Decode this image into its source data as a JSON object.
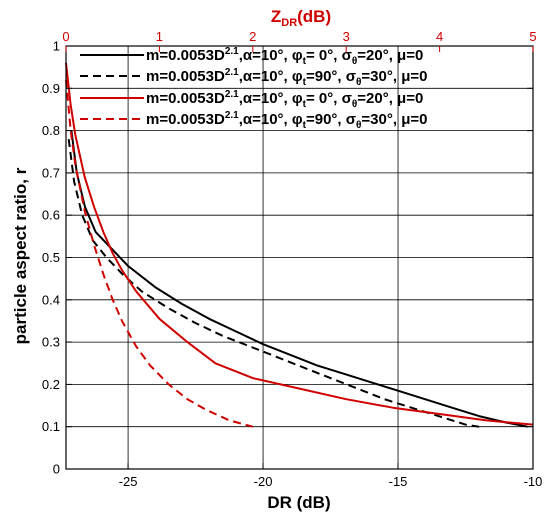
{
  "chart_data": {
    "type": "line",
    "xlabel": "DR (dB)",
    "ylabel": "particle aspect ratio, r",
    "x2label": "Z",
    "x2label_sub": "DR",
    "x2label_suffix": "(dB)",
    "xlim": [
      -27.3,
      -10
    ],
    "ylim": [
      0,
      1
    ],
    "x2lim": [
      0,
      5
    ],
    "xticks": [
      -25,
      -20,
      -15,
      -10
    ],
    "xtick_labels": [
      "-25",
      "-20",
      "-15",
      "-10"
    ],
    "yticks": [
      0,
      0.1,
      0.2,
      0.3,
      0.4,
      0.5,
      0.6,
      0.7,
      0.8,
      0.9,
      1
    ],
    "ytick_labels": [
      "0",
      "0.1",
      "0.2",
      "0.3",
      "0.4",
      "0.5",
      "0.6",
      "0.7",
      "0.8",
      "0.9",
      "1"
    ],
    "x2ticks": [
      0,
      1,
      2,
      3,
      4,
      5
    ],
    "x2tick_labels": [
      "0",
      "1",
      "2",
      "3",
      "4",
      "5"
    ],
    "grid": true,
    "legend_position": "top-right",
    "series": [
      {
        "name": "m=0.0053D^2.1,α=10°, φt= 0°, σθ=20°, μ=0",
        "axis": "bottom",
        "color": "#000000",
        "dash": "solid",
        "x": [
          -27.1,
          -26.9,
          -26.6,
          -26.2,
          -25.6,
          -25.0,
          -24.0,
          -23.0,
          -22.0,
          -21.0,
          -20.0,
          -19.0,
          -18.0,
          -17.0,
          -16.0,
          -15.0,
          -14.0,
          -13.0,
          -12.0,
          -11.0,
          -10.2
        ],
        "y": [
          0.8,
          0.7,
          0.62,
          0.56,
          0.52,
          0.48,
          0.43,
          0.39,
          0.355,
          0.325,
          0.295,
          0.27,
          0.245,
          0.225,
          0.205,
          0.185,
          0.165,
          0.145,
          0.125,
          0.11,
          0.1
        ]
      },
      {
        "name": "m=0.0053D^2.1,α=10°, φt=90°, σθ=30°, μ=0",
        "axis": "bottom",
        "color": "#000000",
        "dash": "dashed",
        "x": [
          -27.2,
          -27.0,
          -26.7,
          -26.3,
          -25.8,
          -25.2,
          -24.5,
          -23.5,
          -22.5,
          -21.5,
          -20.5,
          -19.5,
          -18.5,
          -17.5,
          -16.5,
          -15.5,
          -14.5,
          -13.5,
          -12.5,
          -12.0
        ],
        "y": [
          0.78,
          0.68,
          0.6,
          0.54,
          0.5,
          0.46,
          0.42,
          0.38,
          0.345,
          0.315,
          0.29,
          0.265,
          0.24,
          0.215,
          0.19,
          0.165,
          0.145,
          0.125,
          0.105,
          0.1
        ]
      },
      {
        "name": "m=0.0053D^2.1,α=10°, φt= 0°, σθ=20°, μ=0",
        "axis": "top",
        "color": "#d00000",
        "dash": "solid",
        "x": [
          0.0,
          0.05,
          0.1,
          0.2,
          0.3,
          0.4,
          0.5,
          0.6,
          0.75,
          1.0,
          1.3,
          1.6,
          2.0,
          2.5,
          3.0,
          3.5,
          4.0,
          4.5,
          5.0
        ],
        "y": [
          0.96,
          0.86,
          0.79,
          0.69,
          0.62,
          0.56,
          0.51,
          0.47,
          0.42,
          0.355,
          0.3,
          0.25,
          0.215,
          0.19,
          0.165,
          0.145,
          0.13,
          0.115,
          0.105
        ]
      },
      {
        "name": "m=0.0053D^2.1,α=10°, φt=90°, σθ=30°, μ=0",
        "axis": "top",
        "color": "#d00000",
        "dash": "dashed",
        "x": [
          0.0,
          0.05,
          0.1,
          0.2,
          0.3,
          0.4,
          0.5,
          0.6,
          0.75,
          0.9,
          1.1,
          1.3,
          1.5,
          1.75,
          2.0
        ],
        "y": [
          0.92,
          0.8,
          0.72,
          0.61,
          0.53,
          0.46,
          0.4,
          0.35,
          0.29,
          0.245,
          0.2,
          0.165,
          0.14,
          0.115,
          0.1
        ]
      }
    ]
  },
  "legend": [
    {
      "pre": "m=0.0053D",
      "sup": "2.1",
      "mid": ",α=10°, φ",
      "sub1": "t",
      "mid2": "= 0°, σ",
      "sub2": "θ",
      "post": "=20°, μ=0"
    },
    {
      "pre": "m=0.0053D",
      "sup": "2.1",
      "mid": ",α=10°, φ",
      "sub1": "t",
      "mid2": "=90°, σ",
      "sub2": "θ",
      "post": "=30°, μ=0"
    },
    {
      "pre": "m=0.0053D",
      "sup": "2.1",
      "mid": ",α=10°, φ",
      "sub1": "t",
      "mid2": "= 0°, σ",
      "sub2": "θ",
      "post": "=20°, μ=0"
    },
    {
      "pre": "m=0.0053D",
      "sup": "2.1",
      "mid": ",α=10°, φ",
      "sub1": "t",
      "mid2": "=90°, σ",
      "sub2": "θ",
      "post": "=30°, μ=0"
    }
  ]
}
